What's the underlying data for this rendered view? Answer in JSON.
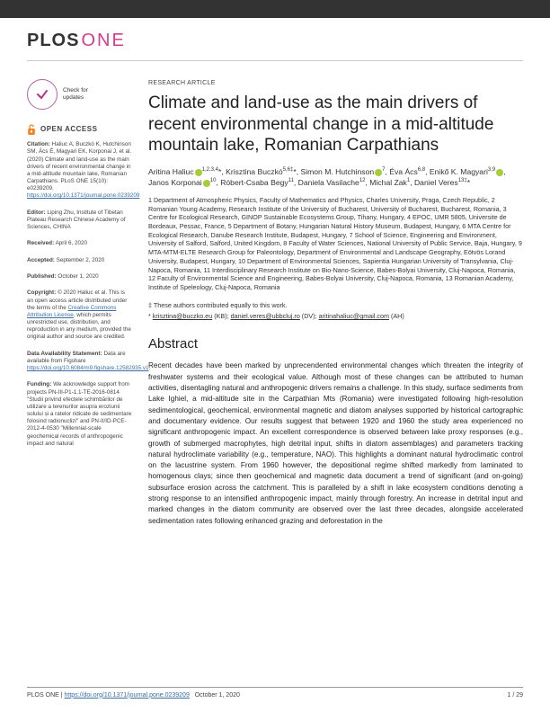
{
  "colors": {
    "topbar": "#333333",
    "plos": "#333333",
    "one": "#d63b8e",
    "orcid": "#a6ce39",
    "link": "#3a6ea5",
    "check_border": "#b862a0",
    "check_arrow": "#c02f8a",
    "lock": "#f58220"
  },
  "journal": {
    "plos": "PLOS",
    "one": "ONE"
  },
  "check_for_updates": {
    "line1": "Check for",
    "line2": "updates"
  },
  "open_access": {
    "label": "OPEN ACCESS"
  },
  "sidebar": {
    "citation": {
      "label": "Citation:",
      "text": "Haliuc A, Buczkó K, Hutchinson SM, Ács É, Magyari EK, Korponai J, et al. (2020) Climate and land-use as the main drivers of recent environmental change in a mid-altitude mountain lake, Romanian Carpathians. PLoS ONE 15(10): e0239209.",
      "doi": "https://doi.org/10.1371/journal.pone.0239209"
    },
    "editor": {
      "label": "Editor:",
      "text": "Liping Zhu, Institute of Tibetan Plateau Research Chinese Academy of Sciences, CHINA"
    },
    "received": {
      "label": "Received:",
      "text": "April 6, 2020"
    },
    "accepted": {
      "label": "Accepted:",
      "text": "September 2, 2020"
    },
    "published": {
      "label": "Published:",
      "text": "October 1, 2020"
    },
    "copyright": {
      "label": "Copyright:",
      "text": "© 2020 Haliuc et al. This is an open access article distributed under the terms of the",
      "link": "Creative Commons Attribution License",
      "tail": ", which permits unrestricted use, distribution, and reproduction in any medium, provided the original author and source are credited."
    },
    "data": {
      "label": "Data Availability Statement:",
      "text": "Data are available from Figshare",
      "link": "https://doi.org/10.6084/m9.figshare.12582935.v1"
    },
    "funding": {
      "label": "Funding:",
      "text": "We acknowledge support from projects PN-III-P1-1.1-TE-2016-0814 \"Studii privind efectele schimbărilor de utilizare a terenurilor asupra eroziunii solului și a ratelor ridicate de sedimentare folosind radionuclizi\" and PN-II/ID-PCE-2012-4-0530 \"Millennial-scale geochemical records of anthropogenic impact and natural"
    }
  },
  "article": {
    "type": "RESEARCH ARTICLE",
    "title": "Climate and land-use as the main drivers of recent environmental change in a mid-altitude mountain lake, Romanian Carpathians",
    "authors_html": "Aritina Haliuc<span class='orcid'></span><sup>1,2,3,4</sup>*, Krisztina Buczkó<sup>5,6‡</sup>*, Simon M. Hutchinson<span class='orcid'></span><sup>7</sup>, Éva Ács<sup>6,8</sup>, Enikő K. Magyari<sup>3,9</sup><span class='orcid'></span>, Janos Korponai<span class='orcid'></span><sup>10</sup>, Róbert-Csaba Begy<sup>11</sup>, Daniela Vasilache<sup>12</sup>, Michal Zak<sup>1</sup>, Daniel Veres<sup>13‡</sup>*",
    "affiliations": "1 Department of Atmospheric Physics, Faculty of Mathematics and Physics, Charles University, Praga, Czech Republic, 2 Romanian Young Academy, Research Institute of the University of Bucharest, University of Bucharest, Bucharest, Romania, 3 Centre for Ecological Research, GINOP Sustainable Ecosystems Group, Tihany, Hungary, 4 EPOC, UMR 5805, Universite de Bordeaux, Pessac, France, 5 Department of Botany, Hungarian Natural History Museum, Budapest, Hungary, 6 MTA Centre for Ecological Research, Danube Research Institute, Budapest, Hungary, 7 School of Science, Engineering and Environment, University of Salford, Salford, United Kingdom, 8 Faculty of Water Sciences, National University of Public Service, Baja, Hungary, 9 MTA-MTM-ELTE Research Group for Paleontology, Department of Environmental and Landscape Geography, Eötvös Lorand University, Budapest, Hungary, 10 Department of Environmental Sciences, Sapientia Hungarian University of Transylvania, Cluj-Napoca, Romania, 11 Interdisciplinary Research Institute on Bio-Nano-Science, Babes-Bolyai University, Cluj-Napoca, Romania, 12 Faculty of Environmental Science and Engineering, Babes-Bolyai University, Cluj-Napoca, Romania, 13 Romanian Academy, Institute of Speleology, Cluj-Napoca, Romania",
    "contrib": "‡ These authors contributed equally to this work.",
    "emails_html": "* <a>krisztina@buczko.eu</a> (KB); <a>daniel.veres@ubbcluj.ro</a> (DV); <a>aritinahaliuc@gmail.com</a> (AH)",
    "abstract_h": "Abstract",
    "abstract": "Recent decades have been marked by unprecendented environmental changes which threaten the integrity of freshwater systems and their ecological value. Although most of these changes can be attributed to human activities, disentagling natural and anthropogenic drivers remains a challenge. In this study, surface sediments from Lake Ighiel, a mid-altitude site in the Carpathian Mts (Romania) were investigated following high-resolution sedimentological, geochemical, environmental magnetic and diatom analyses supported by historical cartographic and documentary evidence. Our results suggest that between 1920 and 1960 the study area experienced no significant anthropogenic impact. An excellent correspondence is observed between lake proxy responses (e.g., growth of submerged macrophytes, high detrital input, shifts in diatom assemblages) and parameters tracking natural hydroclimate variability (e.g., temperature, NAO). This highlights a dominant natural hydroclimatic control on the lacustrine system. From 1960 however, the depositional regime shifted markedly from laminated to homogenous clays; since then geochemical and magnetic data document a trend of significant (and on-going) subsurface erosion across the catchment. This is paralleled by a shift in lake ecosystem conditions denoting a strong response to an intensified anthropogenic impact, mainly through forestry. An increase in detrital input and marked changes in the diatom community are observed over the last three decades, alongside accelerated sedimentation rates following enhanced grazing and deforestation in the"
  },
  "footer": {
    "left_pre": "PLOS ONE | ",
    "doi": "https://doi.org/10.1371/journal.pone.0239209",
    "date": "October 1, 2020",
    "page": "1 / 29"
  }
}
